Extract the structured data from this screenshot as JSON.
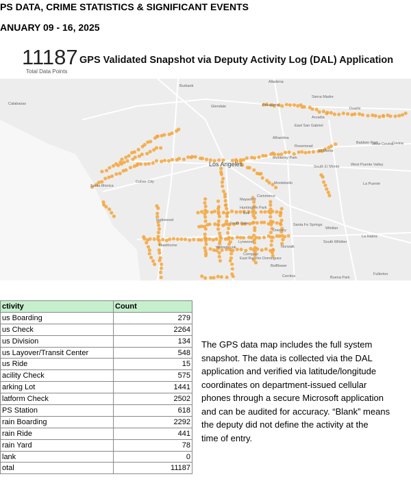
{
  "header": {
    "title": "PS DATA, CRIME STATISTICS & SIGNIFICANT EVENTS",
    "date": "ANUARY 09 - 16, 2025"
  },
  "kpi": {
    "value": 11187,
    "label": "Total Data Points",
    "heading": "GPS Validated Snapshot via Deputy Activity Log (DAL) Application"
  },
  "map": {
    "places": [
      "Burbank",
      "Glendale",
      "Pasadena",
      "Altadena",
      "Sierra Madre",
      "Arcadia",
      "Duarte",
      "Calabasas",
      "Alhambra",
      "East San Gabriel",
      "Rosemead",
      "El Monte",
      "Baldwin Park",
      "West Covina",
      "Covina",
      "Los Angeles",
      "Monterey Park",
      "Montebello",
      "South El Monte",
      "West Puente Valley",
      "La Puente",
      "Santa Monica",
      "Culver City",
      "Inglewood",
      "Commerce",
      "Maywood",
      "Huntington Park",
      "Bell",
      "South Gate",
      "Downey",
      "Santa Fe Springs",
      "Whittier",
      "South Whittier",
      "La Habra",
      "Hawthorne",
      "Lynwood",
      "Compton",
      "Norwalk",
      "Bellflower",
      "Cerritos",
      "Buena Park",
      "Fullerton",
      "Willowbrook",
      "East Rancho Dominguez"
    ]
  },
  "table": {
    "header": [
      "ctivity",
      "Count"
    ],
    "rows": [
      [
        "us Boarding",
        279
      ],
      [
        "us Check",
        2264
      ],
      [
        "us Division",
        134
      ],
      [
        "us Layover/Transit Center",
        548
      ],
      [
        "us Ride",
        15
      ],
      [
        "acility Check",
        575
      ],
      [
        "arking Lot",
        1441
      ],
      [
        "latform Check",
        2502
      ],
      [
        "PS Station",
        618
      ],
      [
        "rain Boarding",
        2292
      ],
      [
        "rain Ride",
        441
      ],
      [
        "rain Yard",
        78
      ],
      [
        "lank",
        0
      ],
      [
        "otal",
        11187
      ]
    ]
  },
  "note": [
    "The GPS data map includes the full system",
    "snapshot. The data is collected via the DAL",
    "application and verified via latitude/longitude",
    "coordinates on department-issued cellular",
    "phones through a secure Microsoft application",
    "and can be audited for accuracy. “Blank” means",
    "the deputy did not define the activity at the",
    "time of entry."
  ]
}
